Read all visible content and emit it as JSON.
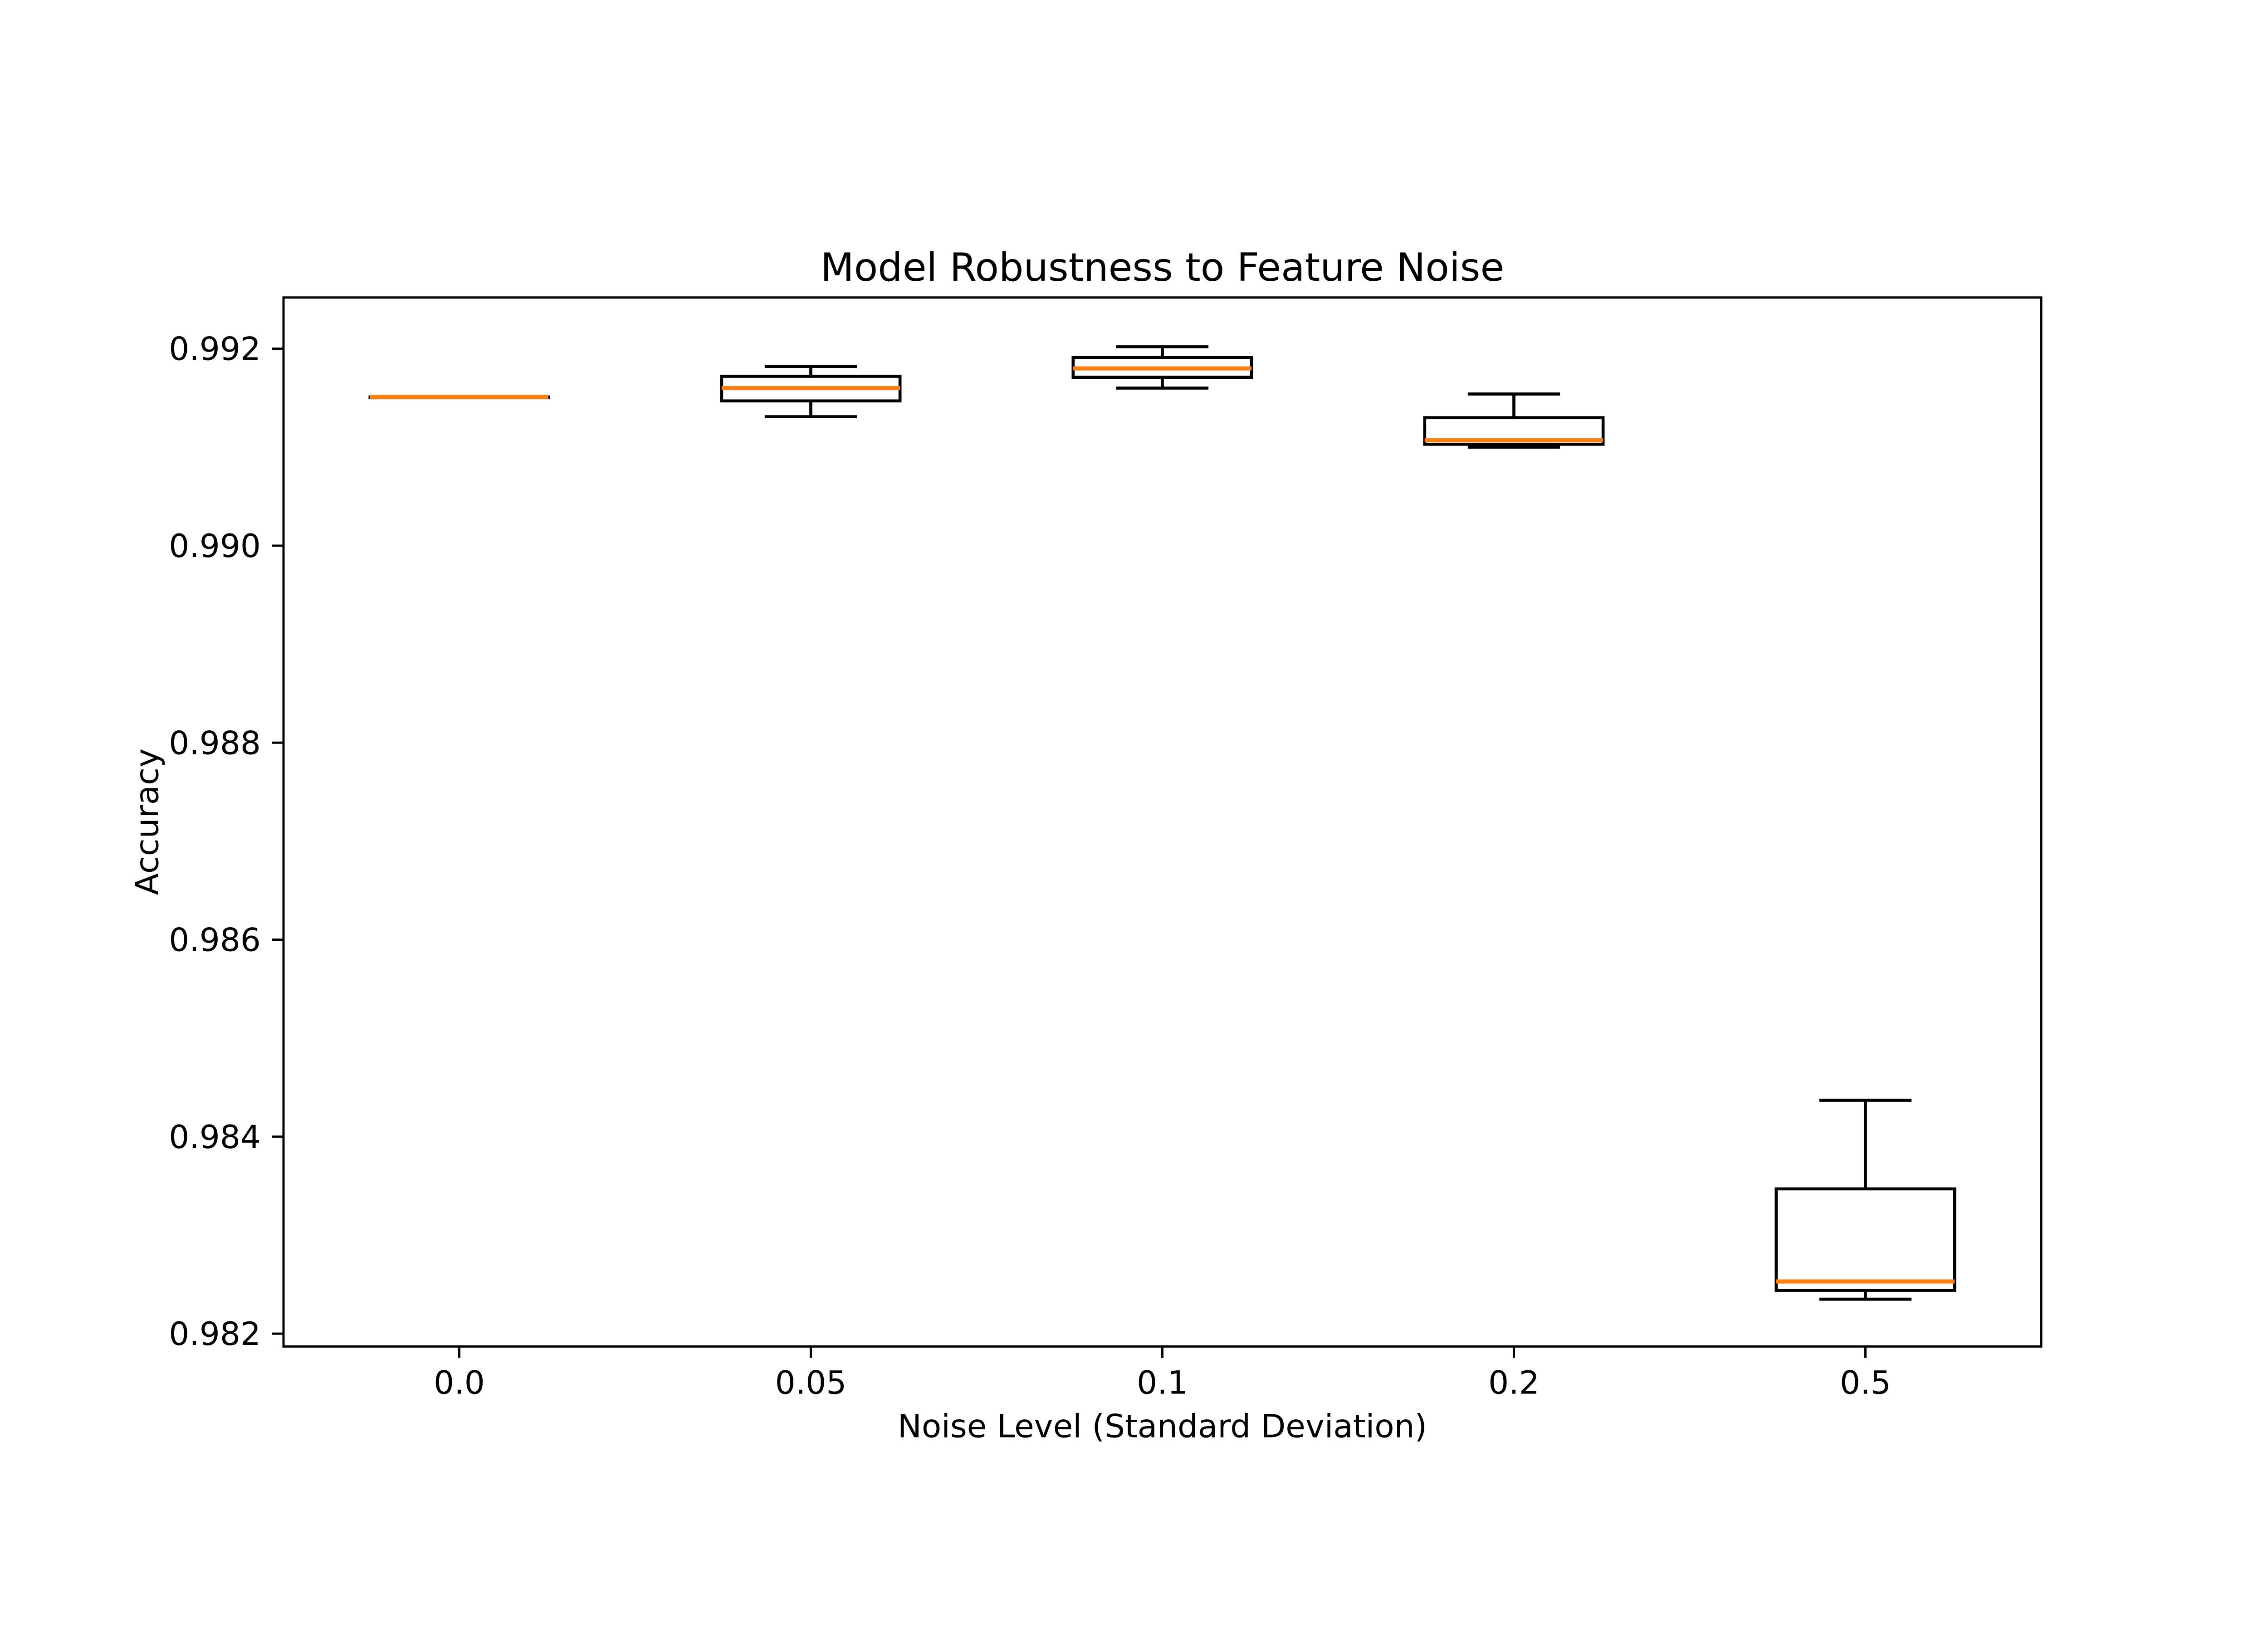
{
  "chart_data": {
    "type": "box",
    "title": "Model Robustness to Feature Noise",
    "xlabel": "Noise Level (Standard Deviation)",
    "ylabel": "Accuracy",
    "categories": [
      "0.0",
      "0.05",
      "0.1",
      "0.2",
      "0.5"
    ],
    "yticks": [
      0.982,
      0.984,
      0.986,
      0.988,
      0.99,
      0.992
    ],
    "ytick_labels": [
      "0.982",
      "0.984",
      "0.986",
      "0.988",
      "0.990",
      "0.992"
    ],
    "ylim": [
      0.98187,
      0.99252
    ],
    "grid": false,
    "legend": null,
    "box_edge_color": "#000000",
    "median_color": "#ff7f0e",
    "background_color": "#ffffff",
    "series": [
      {
        "category": "0.0",
        "whislo": 0.99151,
        "q1": 0.99151,
        "med": 0.99151,
        "q3": 0.99151,
        "whishi": 0.99151
      },
      {
        "category": "0.05",
        "whislo": 0.99131,
        "q1": 0.99147,
        "med": 0.9916,
        "q3": 0.99172,
        "whishi": 0.99182
      },
      {
        "category": "0.1",
        "whislo": 0.9916,
        "q1": 0.99171,
        "med": 0.9918,
        "q3": 0.99191,
        "whishi": 0.99202
      },
      {
        "category": "0.2",
        "whislo": 0.991,
        "q1": 0.99103,
        "med": 0.99107,
        "q3": 0.9913,
        "whishi": 0.99154
      },
      {
        "category": "0.5",
        "whislo": 0.98235,
        "q1": 0.98244,
        "med": 0.98253,
        "q3": 0.98347,
        "whishi": 0.98437
      }
    ]
  }
}
